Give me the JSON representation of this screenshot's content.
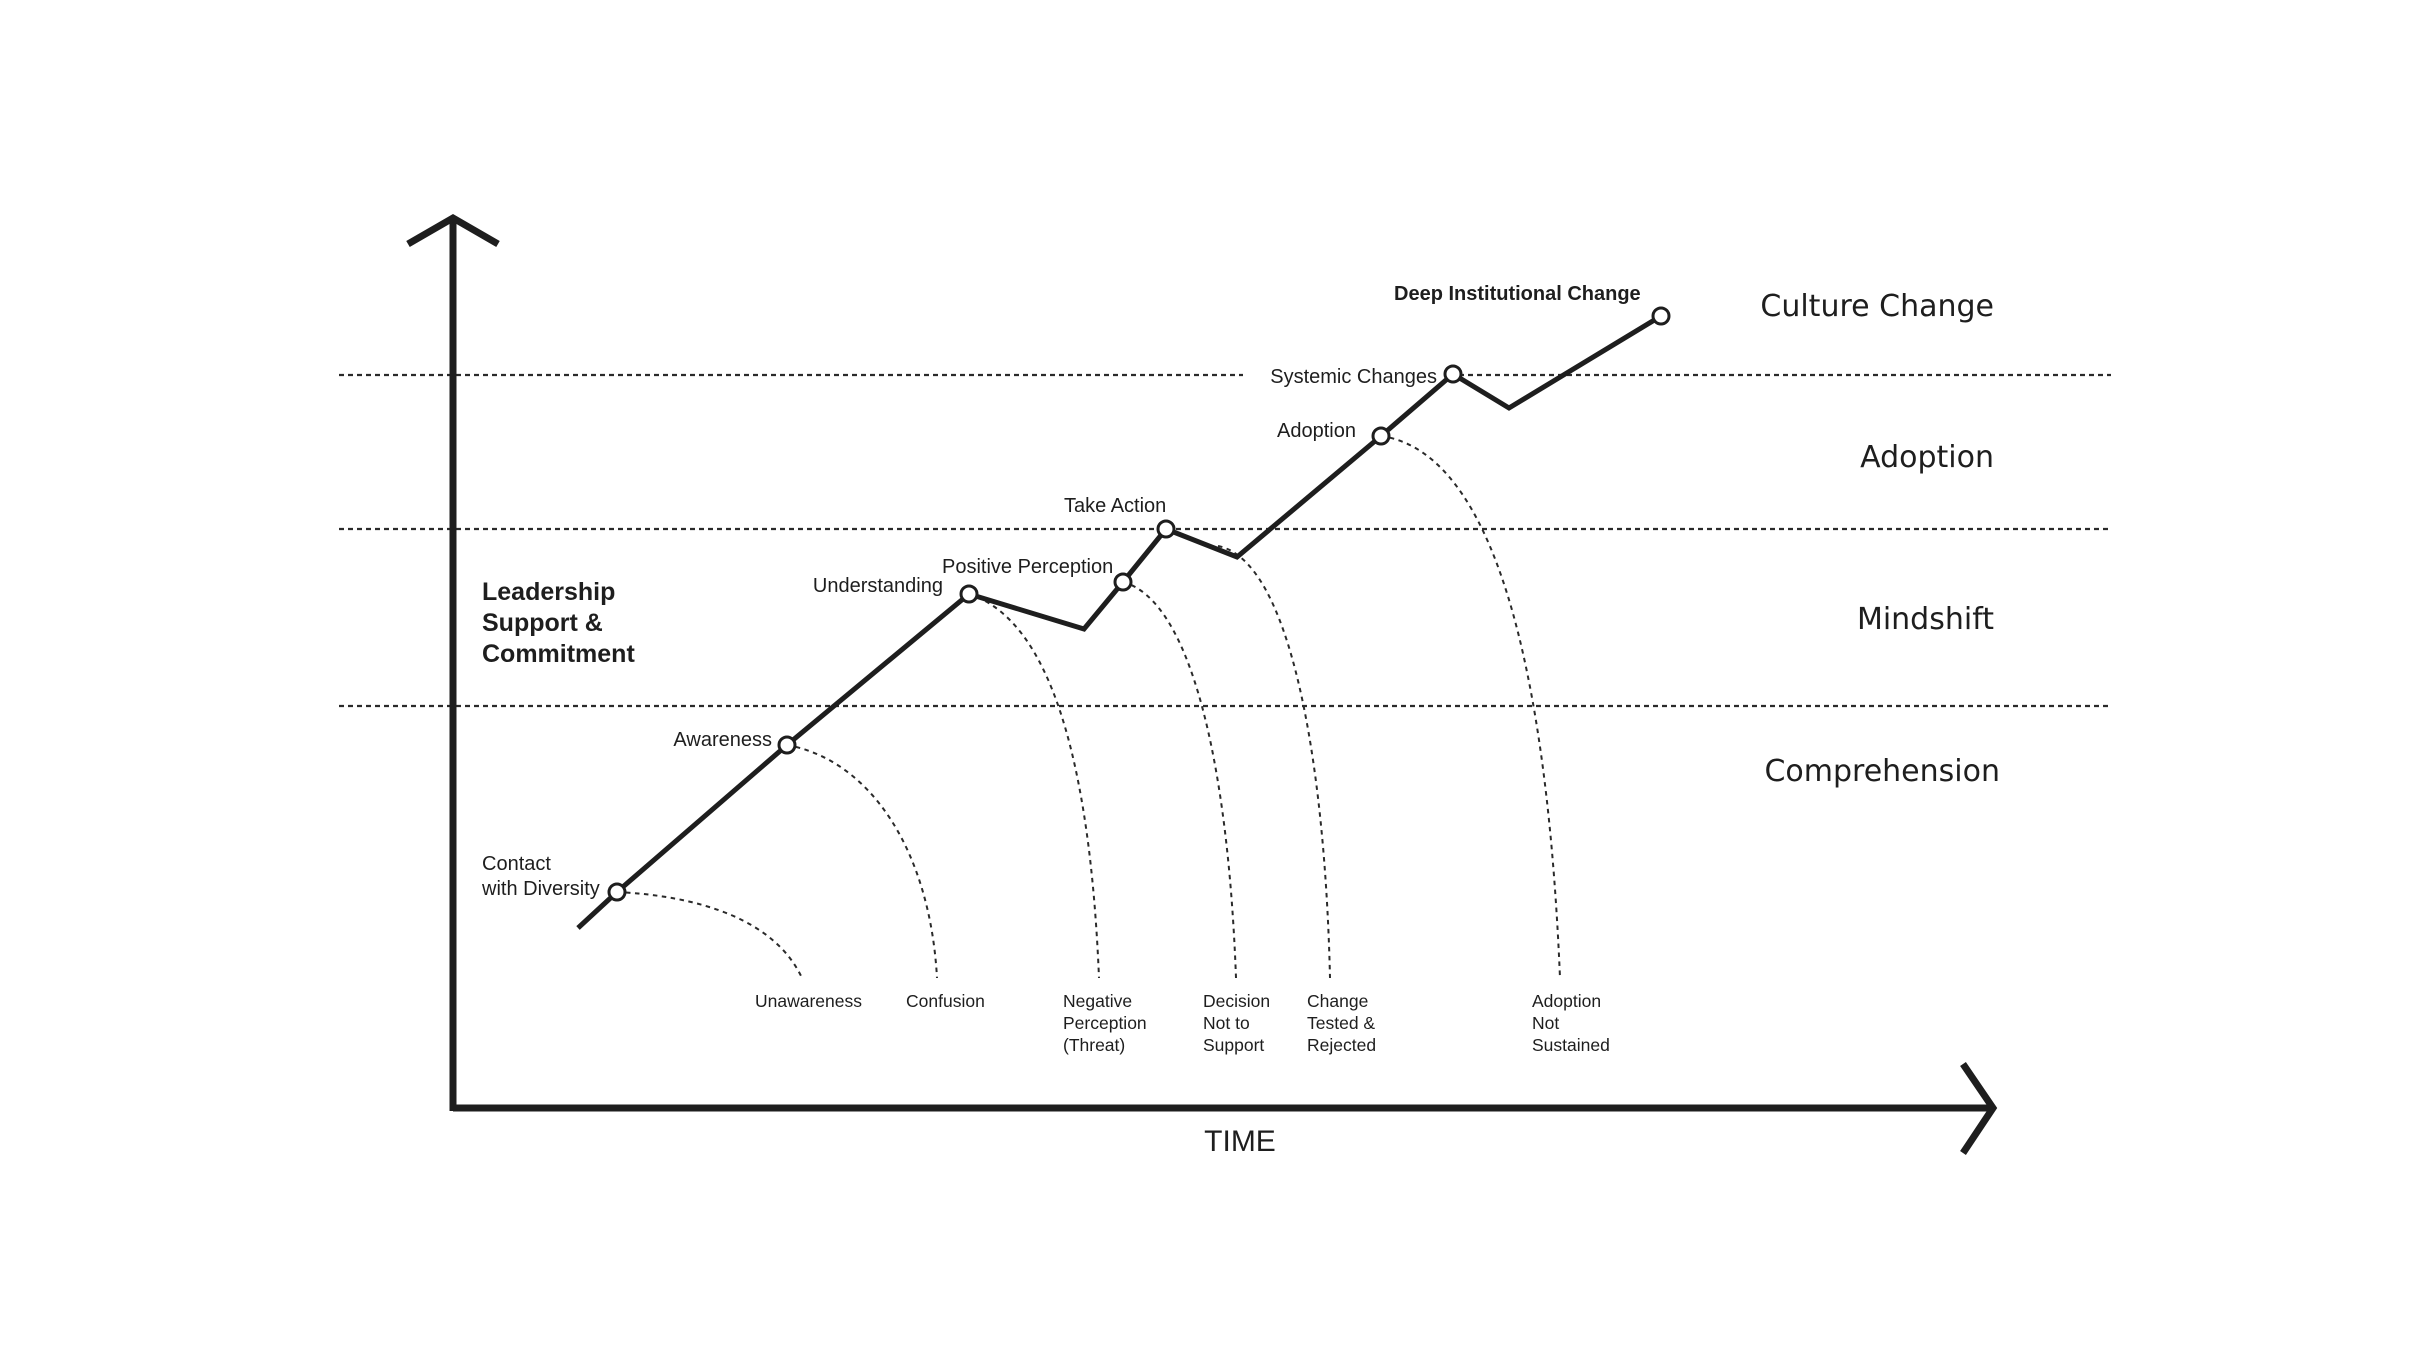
{
  "axis": {
    "x_label": "TIME"
  },
  "side_note": [
    "Leadership",
    "Support &",
    "Commitment"
  ],
  "stages": [
    "Culture Change",
    "Adoption",
    "Mindshift",
    "Comprehension"
  ],
  "milestones": [
    "Contact",
    "with Diversity",
    "Awareness",
    "Understanding",
    "Positive Perception",
    "Take Action",
    "Adoption",
    "Systemic Changes",
    "Deep Institutional Change"
  ],
  "outcomes": {
    "unawareness": [
      "Unawareness"
    ],
    "confusion": [
      "Confusion"
    ],
    "negative_perception": [
      "Negative",
      "Perception",
      "(Threat)"
    ],
    "decision": [
      "Decision",
      "Not to",
      "Support"
    ],
    "change": [
      "Change",
      "Tested &",
      "Rejected"
    ],
    "adoption_not_sustained": [
      "Adoption",
      "Not",
      "Sustained"
    ]
  }
}
